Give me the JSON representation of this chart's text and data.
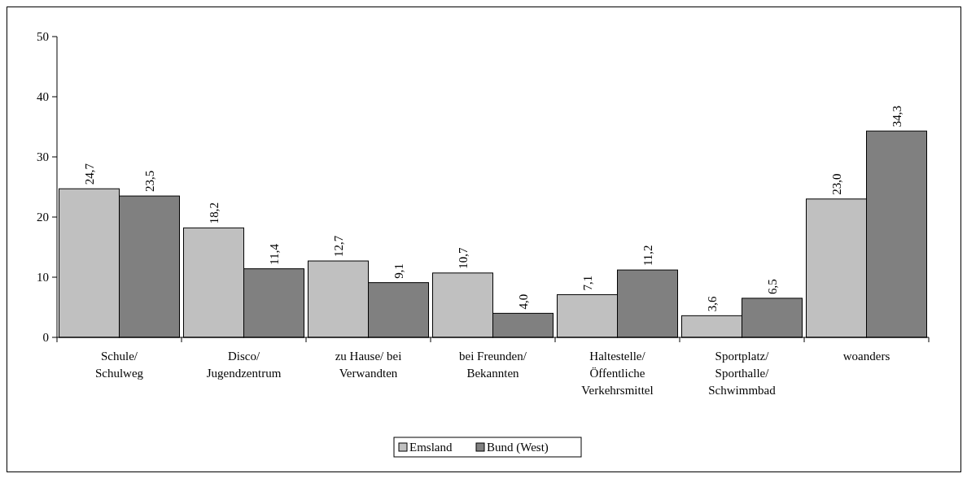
{
  "chart_data": {
    "type": "bar",
    "categories": [
      "Schule/\nSchulweg",
      "Disco/\nJugendzentrum",
      "zu Hause/ bei\nVerwandten",
      "bei Freunden/\nBekannten",
      "Haltestelle/\nÖffentliche\nVerkehrsmittel",
      "Sportplatz/\nSporthalle/\nSchwimmbad",
      "woanders"
    ],
    "series": [
      {
        "name": "Emsland",
        "color": "#c0c0c0",
        "values": [
          24.7,
          18.2,
          12.7,
          10.7,
          7.1,
          3.6,
          23.0
        ],
        "value_labels": [
          "24,7",
          "18,2",
          "12,7",
          "10,7",
          "7,1",
          "3,6",
          "23,0"
        ]
      },
      {
        "name": "Bund (West)",
        "color": "#808080",
        "values": [
          23.5,
          11.4,
          9.1,
          4.0,
          11.2,
          6.5,
          34.3
        ],
        "value_labels": [
          "23,5",
          "11,4",
          "9,1",
          "4,0",
          "11,2",
          "6,5",
          "34,3"
        ]
      }
    ],
    "ylim": [
      0,
      50
    ],
    "yticks": [
      0,
      10,
      20,
      30,
      40,
      50
    ],
    "grid": false,
    "legend": "bottom"
  }
}
